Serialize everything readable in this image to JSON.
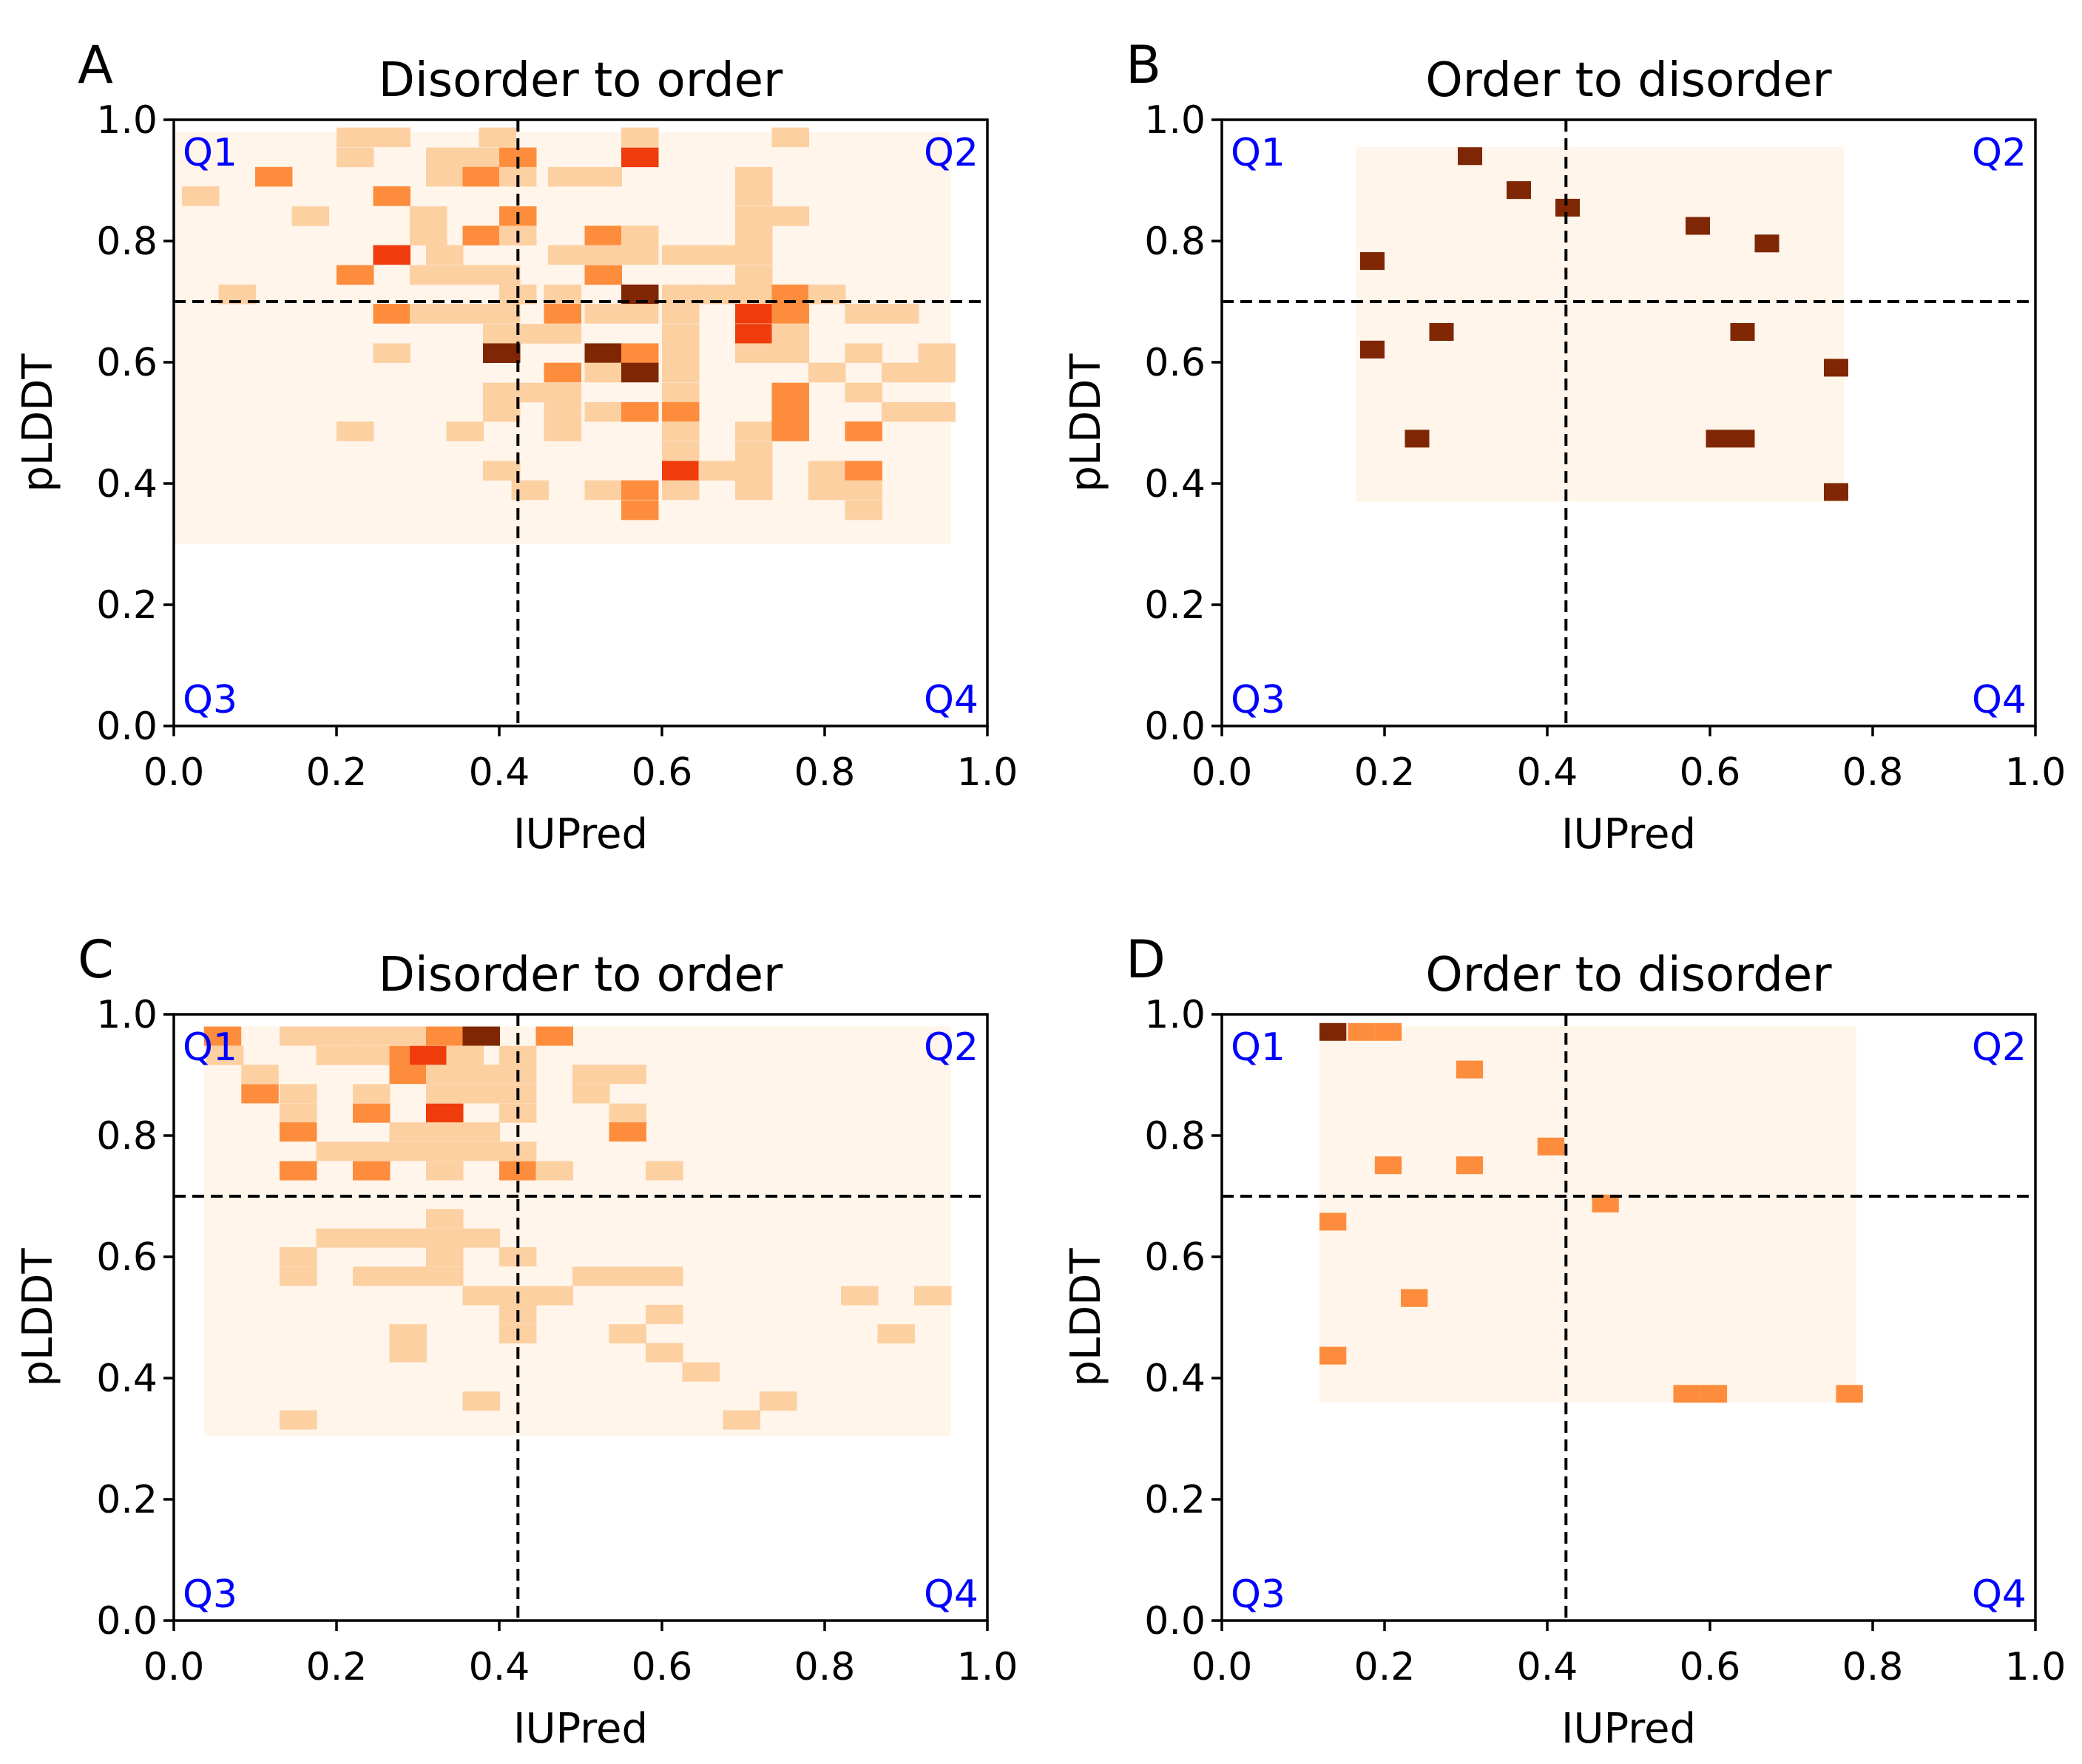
{
  "figure": {
    "xlabel": "IUPred",
    "ylabel": "pLDDT"
  },
  "chart_data": [
    {
      "type": "heatmap",
      "panel": "A",
      "title": "Disorder to order",
      "xlabel": "IUPred",
      "ylabel": "pLDDT",
      "xlim": [
        0,
        1
      ],
      "ylim": [
        0,
        1
      ],
      "xticks": [
        "0.0",
        "0.2",
        "0.4",
        "0.6",
        "0.8",
        "1.0"
      ],
      "yticks": [
        "0.0",
        "0.2",
        "0.4",
        "0.6",
        "0.8",
        "1.0"
      ],
      "threshold_x": 0.423,
      "threshold_y": 0.7,
      "quadrant_labels": [
        "Q1",
        "Q2",
        "Q3",
        "Q4"
      ],
      "colors": [
        "#fff5eb",
        "#fdd0a2",
        "#fd8d3c",
        "#f03c0c",
        "#7f2704"
      ],
      "background_extent": {
        "x": [
          0.0,
          0.955
        ],
        "y": [
          0.3,
          0.98
        ]
      },
      "cell_size": {
        "w": 0.0459,
        "h": 0.0324
      },
      "cells": [
        [
          0.2,
          0.971,
          1
        ],
        [
          0.245,
          0.971,
          1
        ],
        [
          0.375,
          0.971,
          1
        ],
        [
          0.55,
          0.971,
          1
        ],
        [
          0.735,
          0.971,
          1
        ],
        [
          0.2,
          0.938,
          1
        ],
        [
          0.31,
          0.938,
          1
        ],
        [
          0.355,
          0.938,
          1
        ],
        [
          0.4,
          0.938,
          2
        ],
        [
          0.55,
          0.938,
          3
        ],
        [
          0.1,
          0.906,
          2
        ],
        [
          0.31,
          0.906,
          1
        ],
        [
          0.355,
          0.906,
          2
        ],
        [
          0.4,
          0.906,
          1
        ],
        [
          0.46,
          0.906,
          1
        ],
        [
          0.505,
          0.906,
          1
        ],
        [
          0.69,
          0.906,
          1
        ],
        [
          0.01,
          0.874,
          1
        ],
        [
          0.245,
          0.874,
          2
        ],
        [
          0.69,
          0.874,
          1
        ],
        [
          0.145,
          0.841,
          1
        ],
        [
          0.29,
          0.841,
          1
        ],
        [
          0.4,
          0.841,
          2
        ],
        [
          0.69,
          0.841,
          1
        ],
        [
          0.735,
          0.841,
          1
        ],
        [
          0.29,
          0.809,
          1
        ],
        [
          0.355,
          0.809,
          2
        ],
        [
          0.4,
          0.809,
          1
        ],
        [
          0.505,
          0.809,
          2
        ],
        [
          0.55,
          0.809,
          1
        ],
        [
          0.69,
          0.809,
          1
        ],
        [
          0.245,
          0.777,
          3
        ],
        [
          0.31,
          0.777,
          1
        ],
        [
          0.46,
          0.777,
          1
        ],
        [
          0.505,
          0.777,
          1
        ],
        [
          0.55,
          0.777,
          1
        ],
        [
          0.6,
          0.777,
          1
        ],
        [
          0.645,
          0.777,
          1
        ],
        [
          0.69,
          0.777,
          1
        ],
        [
          0.2,
          0.744,
          2
        ],
        [
          0.29,
          0.744,
          1
        ],
        [
          0.335,
          0.744,
          1
        ],
        [
          0.38,
          0.744,
          1
        ],
        [
          0.505,
          0.744,
          2
        ],
        [
          0.69,
          0.744,
          1
        ],
        [
          0.055,
          0.712,
          1
        ],
        [
          0.4,
          0.712,
          1
        ],
        [
          0.455,
          0.712,
          1
        ],
        [
          0.55,
          0.712,
          4
        ],
        [
          0.6,
          0.712,
          1
        ],
        [
          0.645,
          0.712,
          1
        ],
        [
          0.69,
          0.712,
          1
        ],
        [
          0.735,
          0.712,
          2
        ],
        [
          0.78,
          0.712,
          1
        ],
        [
          0.245,
          0.68,
          2
        ],
        [
          0.29,
          0.68,
          1
        ],
        [
          0.335,
          0.68,
          1
        ],
        [
          0.38,
          0.68,
          1
        ],
        [
          0.455,
          0.68,
          2
        ],
        [
          0.505,
          0.68,
          1
        ],
        [
          0.55,
          0.68,
          1
        ],
        [
          0.6,
          0.68,
          1
        ],
        [
          0.69,
          0.68,
          3
        ],
        [
          0.735,
          0.68,
          2
        ],
        [
          0.825,
          0.68,
          1
        ],
        [
          0.87,
          0.68,
          1
        ],
        [
          0.38,
          0.647,
          1
        ],
        [
          0.415,
          0.647,
          1
        ],
        [
          0.455,
          0.647,
          1
        ],
        [
          0.6,
          0.647,
          1
        ],
        [
          0.69,
          0.647,
          3
        ],
        [
          0.735,
          0.647,
          1
        ],
        [
          0.245,
          0.615,
          1
        ],
        [
          0.38,
          0.615,
          4
        ],
        [
          0.505,
          0.615,
          4
        ],
        [
          0.55,
          0.615,
          2
        ],
        [
          0.6,
          0.615,
          1
        ],
        [
          0.69,
          0.615,
          1
        ],
        [
          0.735,
          0.615,
          1
        ],
        [
          0.825,
          0.615,
          1
        ],
        [
          0.915,
          0.615,
          1
        ],
        [
          0.455,
          0.583,
          2
        ],
        [
          0.505,
          0.583,
          1
        ],
        [
          0.55,
          0.583,
          4
        ],
        [
          0.6,
          0.583,
          1
        ],
        [
          0.78,
          0.583,
          1
        ],
        [
          0.87,
          0.583,
          1
        ],
        [
          0.915,
          0.583,
          1
        ],
        [
          0.38,
          0.55,
          1
        ],
        [
          0.41,
          0.55,
          1
        ],
        [
          0.455,
          0.55,
          1
        ],
        [
          0.6,
          0.55,
          1
        ],
        [
          0.735,
          0.55,
          2
        ],
        [
          0.825,
          0.55,
          1
        ],
        [
          0.38,
          0.518,
          1
        ],
        [
          0.455,
          0.518,
          1
        ],
        [
          0.505,
          0.518,
          1
        ],
        [
          0.55,
          0.518,
          2
        ],
        [
          0.6,
          0.518,
          2
        ],
        [
          0.735,
          0.518,
          2
        ],
        [
          0.87,
          0.518,
          1
        ],
        [
          0.915,
          0.518,
          1
        ],
        [
          0.2,
          0.486,
          1
        ],
        [
          0.335,
          0.486,
          1
        ],
        [
          0.455,
          0.486,
          1
        ],
        [
          0.6,
          0.486,
          1
        ],
        [
          0.69,
          0.486,
          1
        ],
        [
          0.735,
          0.486,
          2
        ],
        [
          0.825,
          0.486,
          2
        ],
        [
          0.6,
          0.453,
          1
        ],
        [
          0.69,
          0.453,
          1
        ],
        [
          0.38,
          0.421,
          1
        ],
        [
          0.6,
          0.421,
          3
        ],
        [
          0.645,
          0.421,
          1
        ],
        [
          0.69,
          0.421,
          1
        ],
        [
          0.78,
          0.421,
          1
        ],
        [
          0.825,
          0.421,
          2
        ],
        [
          0.415,
          0.389,
          1
        ],
        [
          0.505,
          0.389,
          1
        ],
        [
          0.55,
          0.389,
          2
        ],
        [
          0.6,
          0.389,
          1
        ],
        [
          0.69,
          0.389,
          1
        ],
        [
          0.78,
          0.389,
          1
        ],
        [
          0.825,
          0.389,
          1
        ],
        [
          0.55,
          0.356,
          2
        ],
        [
          0.825,
          0.356,
          1
        ]
      ]
    },
    {
      "type": "heatmap",
      "panel": "B",
      "title": "Order to disorder",
      "xlabel": "IUPred",
      "ylabel": "pLDDT",
      "xlim": [
        0,
        1
      ],
      "ylim": [
        0,
        1
      ],
      "xticks": [
        "0.0",
        "0.2",
        "0.4",
        "0.6",
        "0.8",
        "1.0"
      ],
      "yticks": [
        "0.0",
        "0.2",
        "0.4",
        "0.6",
        "0.8",
        "1.0"
      ],
      "threshold_x": 0.423,
      "threshold_y": 0.7,
      "quadrant_labels": [
        "Q1",
        "Q2",
        "Q3",
        "Q4"
      ],
      "colors": [
        "#fff5eb",
        "#fdd0a2",
        "#fd8d3c",
        "#f03c0c",
        "#7f2704"
      ],
      "background_extent": {
        "x": [
          0.165,
          0.765
        ],
        "y": [
          0.37,
          0.955
        ]
      },
      "cell_size": {
        "w": 0.03,
        "h": 0.0293
      },
      "cells": [
        [
          0.29,
          0.94,
          4
        ],
        [
          0.35,
          0.884,
          4
        ],
        [
          0.41,
          0.855,
          4
        ],
        [
          0.57,
          0.825,
          4
        ],
        [
          0.655,
          0.796,
          4
        ],
        [
          0.17,
          0.767,
          4
        ],
        [
          0.17,
          0.621,
          4
        ],
        [
          0.255,
          0.65,
          4
        ],
        [
          0.625,
          0.65,
          4
        ],
        [
          0.74,
          0.591,
          4
        ],
        [
          0.225,
          0.474,
          4
        ],
        [
          0.595,
          0.474,
          4
        ],
        [
          0.625,
          0.474,
          4
        ],
        [
          0.74,
          0.386,
          4
        ]
      ]
    },
    {
      "type": "heatmap",
      "panel": "C",
      "title": "Disorder to order",
      "xlabel": "IUPred",
      "ylabel": "pLDDT",
      "xlim": [
        0,
        1
      ],
      "ylim": [
        0,
        1
      ],
      "xticks": [
        "0.0",
        "0.2",
        "0.4",
        "0.6",
        "0.8",
        "1.0"
      ],
      "yticks": [
        "0.0",
        "0.2",
        "0.4",
        "0.6",
        "0.8",
        "1.0"
      ],
      "threshold_x": 0.423,
      "threshold_y": 0.7,
      "quadrant_labels": [
        "Q1",
        "Q2",
        "Q3",
        "Q4"
      ],
      "colors": [
        "#fff5eb",
        "#fdd0a2",
        "#fd8d3c",
        "#f03c0c",
        "#7f2704"
      ],
      "background_extent": {
        "x": [
          0.037,
          0.955
        ],
        "y": [
          0.305,
          0.98
        ]
      },
      "cell_size": {
        "w": 0.0459,
        "h": 0.0317
      },
      "cells": [
        [
          0.037,
          0.964,
          2
        ],
        [
          0.13,
          0.964,
          1
        ],
        [
          0.175,
          0.964,
          1
        ],
        [
          0.22,
          0.964,
          1
        ],
        [
          0.265,
          0.964,
          1
        ],
        [
          0.31,
          0.964,
          2
        ],
        [
          0.355,
          0.964,
          4
        ],
        [
          0.445,
          0.964,
          2
        ],
        [
          0.04,
          0.932,
          1
        ],
        [
          0.175,
          0.932,
          1
        ],
        [
          0.22,
          0.932,
          1
        ],
        [
          0.265,
          0.932,
          2
        ],
        [
          0.29,
          0.932,
          3
        ],
        [
          0.335,
          0.932,
          1
        ],
        [
          0.4,
          0.932,
          1
        ],
        [
          0.083,
          0.901,
          1
        ],
        [
          0.265,
          0.901,
          2
        ],
        [
          0.31,
          0.901,
          1
        ],
        [
          0.355,
          0.901,
          1
        ],
        [
          0.4,
          0.901,
          1
        ],
        [
          0.49,
          0.901,
          1
        ],
        [
          0.535,
          0.901,
          1
        ],
        [
          0.083,
          0.869,
          2
        ],
        [
          0.13,
          0.869,
          1
        ],
        [
          0.22,
          0.869,
          1
        ],
        [
          0.31,
          0.869,
          1
        ],
        [
          0.355,
          0.869,
          1
        ],
        [
          0.4,
          0.869,
          1
        ],
        [
          0.49,
          0.869,
          1
        ],
        [
          0.13,
          0.837,
          1
        ],
        [
          0.22,
          0.837,
          2
        ],
        [
          0.31,
          0.837,
          3
        ],
        [
          0.4,
          0.837,
          1
        ],
        [
          0.535,
          0.837,
          1
        ],
        [
          0.13,
          0.806,
          2
        ],
        [
          0.265,
          0.806,
          1
        ],
        [
          0.31,
          0.806,
          1
        ],
        [
          0.355,
          0.806,
          1
        ],
        [
          0.535,
          0.806,
          2
        ],
        [
          0.175,
          0.774,
          1
        ],
        [
          0.22,
          0.774,
          1
        ],
        [
          0.265,
          0.774,
          1
        ],
        [
          0.31,
          0.774,
          1
        ],
        [
          0.355,
          0.774,
          1
        ],
        [
          0.4,
          0.774,
          1
        ],
        [
          0.13,
          0.742,
          2
        ],
        [
          0.22,
          0.742,
          2
        ],
        [
          0.31,
          0.742,
          1
        ],
        [
          0.4,
          0.742,
          2
        ],
        [
          0.445,
          0.742,
          1
        ],
        [
          0.58,
          0.742,
          1
        ],
        [
          0.31,
          0.663,
          1
        ],
        [
          0.175,
          0.631,
          1
        ],
        [
          0.22,
          0.631,
          1
        ],
        [
          0.265,
          0.631,
          1
        ],
        [
          0.31,
          0.631,
          1
        ],
        [
          0.355,
          0.631,
          1
        ],
        [
          0.13,
          0.6,
          1
        ],
        [
          0.31,
          0.6,
          1
        ],
        [
          0.4,
          0.6,
          1
        ],
        [
          0.13,
          0.568,
          1
        ],
        [
          0.22,
          0.568,
          1
        ],
        [
          0.265,
          0.568,
          1
        ],
        [
          0.31,
          0.568,
          1
        ],
        [
          0.49,
          0.568,
          1
        ],
        [
          0.535,
          0.568,
          1
        ],
        [
          0.58,
          0.568,
          1
        ],
        [
          0.355,
          0.536,
          1
        ],
        [
          0.4,
          0.536,
          1
        ],
        [
          0.445,
          0.536,
          1
        ],
        [
          0.82,
          0.536,
          1
        ],
        [
          0.91,
          0.536,
          1
        ],
        [
          0.4,
          0.505,
          1
        ],
        [
          0.58,
          0.505,
          1
        ],
        [
          0.265,
          0.473,
          1
        ],
        [
          0.4,
          0.473,
          1
        ],
        [
          0.535,
          0.473,
          1
        ],
        [
          0.865,
          0.473,
          1
        ],
        [
          0.265,
          0.442,
          1
        ],
        [
          0.58,
          0.442,
          1
        ],
        [
          0.625,
          0.41,
          1
        ],
        [
          0.355,
          0.362,
          1
        ],
        [
          0.72,
          0.362,
          1
        ],
        [
          0.13,
          0.331,
          1
        ],
        [
          0.675,
          0.331,
          1
        ]
      ]
    },
    {
      "type": "heatmap",
      "panel": "D",
      "title": "Order to disorder",
      "xlabel": "IUPred",
      "ylabel": "pLDDT",
      "xlim": [
        0,
        1
      ],
      "ylim": [
        0,
        1
      ],
      "xticks": [
        "0.0",
        "0.2",
        "0.4",
        "0.6",
        "0.8",
        "1.0"
      ],
      "yticks": [
        "0.0",
        "0.2",
        "0.4",
        "0.6",
        "0.8",
        "1.0"
      ],
      "threshold_x": 0.423,
      "threshold_y": 0.7,
      "quadrant_labels": [
        "Q1",
        "Q2",
        "Q3",
        "Q4"
      ],
      "colors": [
        "#fff5eb",
        "#fdd0a2",
        "#fd8d3c",
        "#f03c0c",
        "#7f2704"
      ],
      "background_extent": {
        "x": [
          0.12,
          0.78
        ],
        "y": [
          0.36,
          0.98
        ]
      },
      "cell_size": {
        "w": 0.033,
        "h": 0.0293
      },
      "cells": [
        [
          0.12,
          0.971,
          4
        ],
        [
          0.155,
          0.971,
          2
        ],
        [
          0.188,
          0.971,
          2
        ],
        [
          0.288,
          0.909,
          2
        ],
        [
          0.388,
          0.782,
          2
        ],
        [
          0.188,
          0.751,
          2
        ],
        [
          0.288,
          0.751,
          2
        ],
        [
          0.455,
          0.688,
          2
        ],
        [
          0.12,
          0.658,
          2
        ],
        [
          0.22,
          0.532,
          2
        ],
        [
          0.12,
          0.437,
          2
        ],
        [
          0.555,
          0.374,
          2
        ],
        [
          0.588,
          0.374,
          2
        ],
        [
          0.755,
          0.374,
          2
        ]
      ]
    }
  ]
}
